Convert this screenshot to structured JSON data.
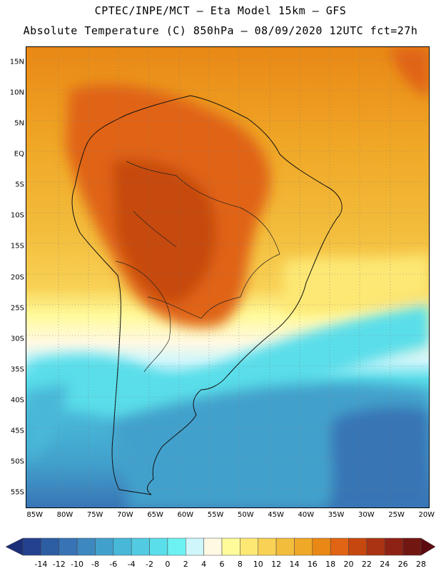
{
  "header": {
    "line1": "CPTEC/INPE/MCT –  Eta Model 15km – GFS",
    "line2": "Absolute Temperature (C) 850hPa – 08/09/2020 12UTC fct=27h"
  },
  "map": {
    "lat_labels": [
      "15N",
      "10N",
      "5N",
      "EQ",
      "5S",
      "10S",
      "15S",
      "20S",
      "25S",
      "30S",
      "35S",
      "40S",
      "45S",
      "50S",
      "55S"
    ],
    "lat_values": [
      15,
      10,
      5,
      0,
      -5,
      -10,
      -15,
      -20,
      -25,
      -30,
      -35,
      -40,
      -45,
      -50,
      -55
    ],
    "lon_labels": [
      "85W",
      "80W",
      "75W",
      "70W",
      "65W",
      "60W",
      "55W",
      "50W",
      "45W",
      "40W",
      "35W",
      "30W",
      "25W",
      "20W"
    ],
    "lon_values": [
      -85,
      -80,
      -75,
      -70,
      -65,
      -60,
      -55,
      -50,
      -45,
      -40,
      -35,
      -30,
      -25,
      -20
    ],
    "lat_range": [
      -57.5,
      17.5
    ],
    "lon_range": [
      -86.5,
      -19.5
    ]
  },
  "colorbar": {
    "labels": [
      "-14",
      "-12",
      "-10",
      "-8",
      "-6",
      "-4",
      "-2",
      "0",
      "2",
      "4",
      "6",
      "8",
      "10",
      "12",
      "14",
      "16",
      "18",
      "20",
      "22",
      "24",
      "26",
      "28"
    ],
    "colors": [
      "#23418f",
      "#2d5ea3",
      "#3874b5",
      "#3e88c0",
      "#42a1cc",
      "#48b8d8",
      "#52cbe2",
      "#5adeea",
      "#6cf2f2",
      "#cff6fb",
      "#fff9e3",
      "#fffa9a",
      "#fde874",
      "#f8d155",
      "#f3bd3c",
      "#f0a827",
      "#e98815",
      "#e06413",
      "#c6480f",
      "#aa3313",
      "#8e2215",
      "#721612"
    ],
    "low_color": "#1b2f78",
    "high_color": "#5c0a10"
  }
}
